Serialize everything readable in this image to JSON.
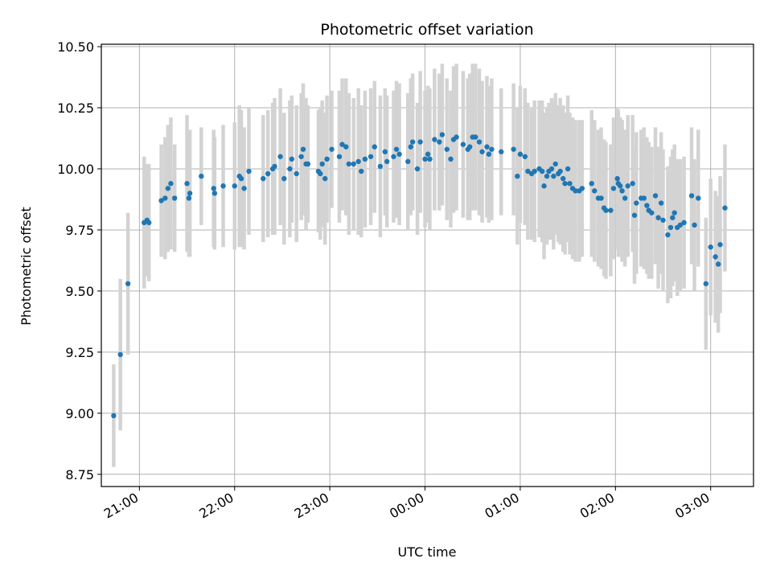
{
  "chart_data": {
    "type": "scatter",
    "title": "Photometric offset variation",
    "xlabel": "UTC time",
    "ylabel": "Photometric offset",
    "x_unit": "UTC time (hours, after 24:00 continues into next day)",
    "xlim": [
      20.6,
      27.45
    ],
    "ylim": [
      8.7,
      10.51
    ],
    "xticks": [
      {
        "value": 21,
        "label": "21:00"
      },
      {
        "value": 22,
        "label": "22:00"
      },
      {
        "value": 23,
        "label": "23:00"
      },
      {
        "value": 24,
        "label": "00:00"
      },
      {
        "value": 25,
        "label": "01:00"
      },
      {
        "value": 26,
        "label": "02:00"
      },
      {
        "value": 27,
        "label": "03:00"
      }
    ],
    "yticks": [
      {
        "value": 8.75,
        "label": "8.75"
      },
      {
        "value": 9.0,
        "label": "9.00"
      },
      {
        "value": 9.25,
        "label": "9.25"
      },
      {
        "value": 9.5,
        "label": "9.50"
      },
      {
        "value": 9.75,
        "label": "9.75"
      },
      {
        "value": 10.0,
        "label": "10.00"
      },
      {
        "value": 10.25,
        "label": "10.25"
      },
      {
        "value": 10.5,
        "label": "10.50"
      }
    ],
    "grid": true,
    "colors": {
      "point": "#1f77b4",
      "errorbar": "#d3d3d3",
      "grid": "#b0b0b0"
    },
    "series": [
      {
        "points": [
          [
            20.73,
            8.99,
            0.21
          ],
          [
            20.8,
            9.24,
            0.31
          ],
          [
            20.88,
            9.53,
            0.29
          ],
          [
            21.05,
            9.78,
            0.27
          ],
          [
            21.08,
            9.79,
            0.23
          ],
          [
            21.1,
            9.78,
            0.24
          ],
          [
            21.23,
            9.87,
            0.23
          ],
          [
            21.27,
            9.88,
            0.25
          ],
          [
            21.3,
            9.92,
            0.26
          ],
          [
            21.33,
            9.94,
            0.27
          ],
          [
            21.37,
            9.88,
            0.22
          ],
          [
            21.5,
            9.94,
            0.28
          ],
          [
            21.52,
            9.88,
            0.24
          ],
          [
            21.53,
            9.9,
            0.26
          ],
          [
            21.65,
            9.97,
            0.2
          ],
          [
            21.78,
            9.92,
            0.24
          ],
          [
            21.79,
            9.9,
            0.23
          ],
          [
            21.88,
            9.93,
            0.25
          ],
          [
            22.0,
            9.93,
            0.26
          ],
          [
            22.05,
            9.97,
            0.29
          ],
          [
            22.07,
            9.96,
            0.28
          ],
          [
            22.1,
            9.92,
            0.25
          ],
          [
            22.15,
            9.99,
            0.26
          ],
          [
            22.3,
            9.96,
            0.26
          ],
          [
            22.35,
            9.98,
            0.26
          ],
          [
            22.4,
            10.0,
            0.27
          ],
          [
            22.42,
            10.01,
            0.28
          ],
          [
            22.48,
            10.05,
            0.28
          ],
          [
            22.52,
            9.96,
            0.27
          ],
          [
            22.58,
            10.0,
            0.28
          ],
          [
            22.6,
            10.04,
            0.26
          ],
          [
            22.65,
            9.98,
            0.28
          ],
          [
            22.7,
            10.05,
            0.26
          ],
          [
            22.72,
            10.08,
            0.27
          ],
          [
            22.75,
            10.02,
            0.27
          ],
          [
            22.77,
            10.02,
            0.24
          ],
          [
            22.88,
            9.99,
            0.25
          ],
          [
            22.9,
            9.98,
            0.27
          ],
          [
            22.92,
            10.02,
            0.26
          ],
          [
            22.95,
            9.96,
            0.27
          ],
          [
            22.97,
            10.04,
            0.26
          ],
          [
            23.02,
            10.08,
            0.24
          ],
          [
            23.1,
            10.05,
            0.27
          ],
          [
            23.13,
            10.1,
            0.27
          ],
          [
            23.17,
            10.09,
            0.28
          ],
          [
            23.2,
            10.02,
            0.29
          ],
          [
            23.25,
            10.02,
            0.27
          ],
          [
            23.3,
            10.03,
            0.3
          ],
          [
            23.33,
            9.99,
            0.27
          ],
          [
            23.37,
            10.04,
            0.28
          ],
          [
            23.43,
            10.05,
            0.28
          ],
          [
            23.47,
            10.09,
            0.27
          ],
          [
            23.53,
            10.01,
            0.29
          ],
          [
            23.58,
            10.07,
            0.26
          ],
          [
            23.6,
            10.03,
            0.27
          ],
          [
            23.67,
            10.05,
            0.27
          ],
          [
            23.7,
            10.08,
            0.28
          ],
          [
            23.73,
            10.06,
            0.29
          ],
          [
            23.82,
            10.03,
            0.28
          ],
          [
            23.85,
            10.09,
            0.28
          ],
          [
            23.87,
            10.11,
            0.28
          ],
          [
            23.92,
            10.0,
            0.27
          ],
          [
            23.95,
            10.11,
            0.29
          ],
          [
            24.0,
            10.04,
            0.28
          ],
          [
            24.03,
            10.06,
            0.28
          ],
          [
            24.05,
            10.04,
            0.29
          ],
          [
            24.1,
            10.12,
            0.29
          ],
          [
            24.15,
            10.11,
            0.28
          ],
          [
            24.18,
            10.14,
            0.29
          ],
          [
            24.23,
            10.08,
            0.29
          ],
          [
            24.27,
            10.04,
            0.28
          ],
          [
            24.3,
            10.12,
            0.3
          ],
          [
            24.33,
            10.13,
            0.3
          ],
          [
            24.4,
            10.1,
            0.3
          ],
          [
            24.45,
            10.08,
            0.29
          ],
          [
            24.47,
            10.09,
            0.3
          ],
          [
            24.5,
            10.13,
            0.3
          ],
          [
            24.53,
            10.13,
            0.3
          ],
          [
            24.57,
            10.11,
            0.3
          ],
          [
            24.6,
            10.07,
            0.29
          ],
          [
            24.65,
            10.09,
            0.29
          ],
          [
            24.67,
            10.06,
            0.28
          ],
          [
            24.7,
            10.08,
            0.29
          ],
          [
            24.8,
            10.07,
            0.26
          ],
          [
            24.93,
            10.08,
            0.27
          ],
          [
            24.97,
            9.97,
            0.28
          ],
          [
            25.0,
            10.06,
            0.28
          ],
          [
            25.05,
            10.05,
            0.28
          ],
          [
            25.08,
            9.99,
            0.28
          ],
          [
            25.12,
            9.98,
            0.27
          ],
          [
            25.15,
            9.99,
            0.29
          ],
          [
            25.2,
            10.0,
            0.28
          ],
          [
            25.23,
            9.99,
            0.29
          ],
          [
            25.25,
            9.93,
            0.3
          ],
          [
            25.28,
            9.97,
            0.28
          ],
          [
            25.3,
            9.99,
            0.28
          ],
          [
            25.33,
            10.0,
            0.29
          ],
          [
            25.35,
            9.97,
            0.3
          ],
          [
            25.37,
            10.02,
            0.29
          ],
          [
            25.4,
            9.98,
            0.28
          ],
          [
            25.42,
            9.99,
            0.3
          ],
          [
            25.45,
            9.96,
            0.3
          ],
          [
            25.47,
            9.94,
            0.29
          ],
          [
            25.5,
            10.0,
            0.3
          ],
          [
            25.52,
            9.94,
            0.29
          ],
          [
            25.55,
            9.92,
            0.29
          ],
          [
            25.58,
            9.91,
            0.29
          ],
          [
            25.62,
            9.91,
            0.29
          ],
          [
            25.65,
            9.92,
            0.28
          ],
          [
            25.75,
            9.94,
            0.3
          ],
          [
            25.78,
            9.91,
            0.29
          ],
          [
            25.82,
            9.88,
            0.28
          ],
          [
            25.85,
            9.88,
            0.29
          ],
          [
            25.88,
            9.84,
            0.28
          ],
          [
            25.9,
            9.83,
            0.28
          ],
          [
            25.95,
            9.83,
            0.27
          ],
          [
            25.98,
            9.92,
            0.29
          ],
          [
            26.02,
            9.96,
            0.29
          ],
          [
            26.03,
            9.94,
            0.3
          ],
          [
            26.05,
            9.93,
            0.28
          ],
          [
            26.07,
            9.91,
            0.29
          ],
          [
            26.1,
            9.88,
            0.28
          ],
          [
            26.13,
            9.93,
            0.29
          ],
          [
            26.18,
            9.94,
            0.28
          ],
          [
            26.2,
            9.81,
            0.28
          ],
          [
            26.22,
            9.86,
            0.29
          ],
          [
            26.27,
            9.88,
            0.28
          ],
          [
            26.3,
            9.88,
            0.29
          ],
          [
            26.33,
            9.85,
            0.28
          ],
          [
            26.35,
            9.83,
            0.28
          ],
          [
            26.38,
            9.82,
            0.27
          ],
          [
            26.42,
            9.89,
            0.28
          ],
          [
            26.45,
            9.8,
            0.29
          ],
          [
            26.48,
            9.86,
            0.29
          ],
          [
            26.5,
            9.79,
            0.29
          ],
          [
            26.55,
            9.73,
            0.28
          ],
          [
            26.58,
            9.76,
            0.29
          ],
          [
            26.6,
            9.8,
            0.28
          ],
          [
            26.62,
            9.82,
            0.28
          ],
          [
            26.65,
            9.76,
            0.28
          ],
          [
            26.68,
            9.77,
            0.27
          ],
          [
            26.72,
            9.78,
            0.27
          ],
          [
            26.8,
            9.89,
            0.28
          ],
          [
            26.83,
            9.77,
            0.27
          ],
          [
            26.87,
            9.88,
            0.28
          ],
          [
            26.95,
            9.53,
            0.27
          ],
          [
            27.0,
            9.68,
            0.28
          ],
          [
            27.05,
            9.64,
            0.27
          ],
          [
            27.08,
            9.61,
            0.28
          ],
          [
            27.1,
            9.69,
            0.28
          ],
          [
            27.15,
            9.84,
            0.26
          ]
        ]
      }
    ]
  }
}
